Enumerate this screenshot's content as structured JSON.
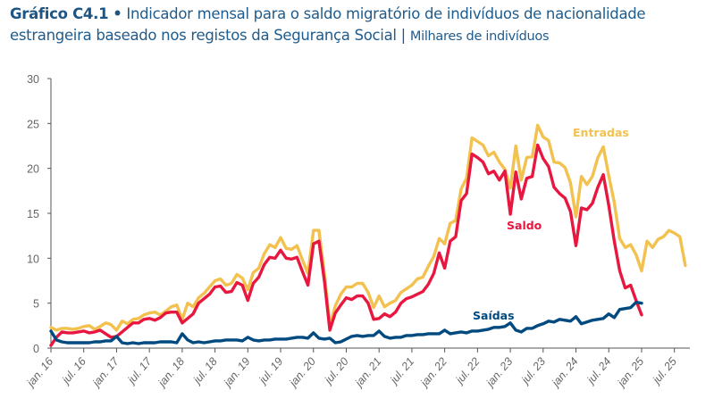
{
  "title": {
    "label": "Gráfico C4.1",
    "bullet": "•",
    "text": "Indicador mensal para o saldo migratório de indivíduos de nacionalidade estrangeira baseado nos registos da Segurança Social",
    "separator": "|",
    "unit": "Milhares de indivíduos"
  },
  "chart_data": {
    "type": "line",
    "x_start": "jan. 16",
    "x_frequency": "monthly",
    "x_tick_labels": [
      "jan. 16",
      "jul. 16",
      "jan. 17",
      "jul. 17",
      "jan. 18",
      "jul. 18",
      "jan. 19",
      "jul. 19",
      "jan. 20",
      "jul. 20",
      "jan. 21",
      "jul. 21",
      "jan. 22",
      "jul. 22",
      "jan. 23",
      "jul. 23",
      "jan. 24",
      "jul. 24",
      "jan. 25",
      "jul. 25"
    ],
    "y_ticks": [
      0,
      5,
      10,
      15,
      20,
      25,
      30
    ],
    "ylim": [
      0,
      30
    ],
    "grid": false,
    "legend": "inline labels",
    "series": [
      {
        "name": "Entradas",
        "color": "#F2C14E",
        "values": [
          2.3,
          2.0,
          2.2,
          2.2,
          2.1,
          2.2,
          2.4,
          2.5,
          2.1,
          2.4,
          2.8,
          2.6,
          2.0,
          3.0,
          2.7,
          3.2,
          3.3,
          3.7,
          3.9,
          4.0,
          3.7,
          4.1,
          4.6,
          4.8,
          3.2,
          5.0,
          4.6,
          5.6,
          6.1,
          6.8,
          7.5,
          7.7,
          7.0,
          7.2,
          8.2,
          7.8,
          6.5,
          8.4,
          8.9,
          10.5,
          11.5,
          11.2,
          12.3,
          11.1,
          11.0,
          11.4,
          9.8,
          8.3,
          13.1,
          13.1,
          8.3,
          2.5,
          4.7,
          6.0,
          6.8,
          6.8,
          7.2,
          7.2,
          6.2,
          4.5,
          5.8,
          4.6,
          5.0,
          5.3,
          6.2,
          6.6,
          7.0,
          7.7,
          7.9,
          9.1,
          10.2,
          12.2,
          11.6,
          13.9,
          14.2,
          17.7,
          18.9,
          23.4,
          23.0,
          22.6,
          21.4,
          21.8,
          20.7,
          19.9,
          17.8,
          22.5,
          18.7,
          21.2,
          21.3,
          24.8,
          23.5,
          23.1,
          20.7,
          20.6,
          20.1,
          18.4,
          14.6,
          19.1,
          18.2,
          19.1,
          21.2,
          22.4,
          19.2,
          16.2,
          12.2,
          11.2,
          11.5,
          10.4,
          8.6,
          11.9,
          11.2,
          12.1,
          12.4,
          13.1,
          12.8,
          12.4,
          9.2
        ]
      },
      {
        "name": "Saldo",
        "color": "#E8173F",
        "values": [
          0.3,
          1.2,
          1.8,
          1.7,
          1.7,
          1.8,
          1.9,
          1.7,
          1.8,
          2.0,
          1.6,
          1.2,
          1.3,
          1.8,
          2.3,
          2.8,
          2.8,
          3.2,
          3.3,
          3.1,
          3.4,
          3.9,
          4.0,
          4.0,
          2.8,
          3.3,
          3.8,
          5.0,
          5.5,
          6.0,
          6.8,
          6.9,
          6.2,
          6.3,
          7.3,
          7.0,
          5.3,
          7.2,
          7.9,
          9.3,
          10.1,
          10.0,
          10.9,
          10.0,
          9.9,
          10.1,
          8.5,
          7.0,
          11.6,
          11.9,
          7.5,
          2.0,
          3.9,
          4.8,
          5.6,
          5.4,
          5.8,
          5.8,
          5.0,
          3.2,
          3.3,
          3.8,
          3.5,
          4.0,
          5.0,
          5.5,
          5.7,
          6.0,
          6.3,
          7.1,
          8.3,
          10.6,
          8.9,
          11.9,
          12.4,
          16.4,
          17.2,
          21.6,
          21.2,
          20.7,
          19.4,
          19.7,
          18.7,
          19.7,
          14.9,
          19.6,
          16.6,
          18.9,
          19.1,
          22.6,
          21.1,
          20.2,
          17.9,
          17.2,
          16.7,
          15.2,
          11.4,
          15.6,
          15.4,
          16.1,
          17.9,
          19.3,
          15.9,
          11.9,
          8.6,
          6.7,
          7.0,
          5.3,
          3.7
        ]
      },
      {
        "name": "Saídas",
        "color": "#004A80",
        "values": [
          1.9,
          0.9,
          0.7,
          0.6,
          0.6,
          0.6,
          0.6,
          0.6,
          0.7,
          0.7,
          0.8,
          0.8,
          1.3,
          0.6,
          0.5,
          0.6,
          0.5,
          0.6,
          0.6,
          0.6,
          0.7,
          0.7,
          0.7,
          0.6,
          1.6,
          0.9,
          0.6,
          0.7,
          0.6,
          0.7,
          0.8,
          0.8,
          0.9,
          0.9,
          0.9,
          0.8,
          1.2,
          0.9,
          0.8,
          0.9,
          0.9,
          1.0,
          1.0,
          1.0,
          1.1,
          1.2,
          1.2,
          1.1,
          1.7,
          1.1,
          1.0,
          1.1,
          0.6,
          0.7,
          1.0,
          1.3,
          1.4,
          1.3,
          1.4,
          1.4,
          1.9,
          1.3,
          1.1,
          1.2,
          1.2,
          1.4,
          1.4,
          1.5,
          1.5,
          1.6,
          1.6,
          1.6,
          2.0,
          1.6,
          1.7,
          1.8,
          1.7,
          1.9,
          1.9,
          2.0,
          2.1,
          2.3,
          2.3,
          2.4,
          2.8,
          2.0,
          1.8,
          2.2,
          2.2,
          2.5,
          2.7,
          3.0,
          2.9,
          3.2,
          3.1,
          3.0,
          3.5,
          2.7,
          2.9,
          3.1,
          3.2,
          3.3,
          3.8,
          3.4,
          4.3,
          4.4,
          4.5,
          5.1,
          5.0
        ]
      }
    ]
  }
}
